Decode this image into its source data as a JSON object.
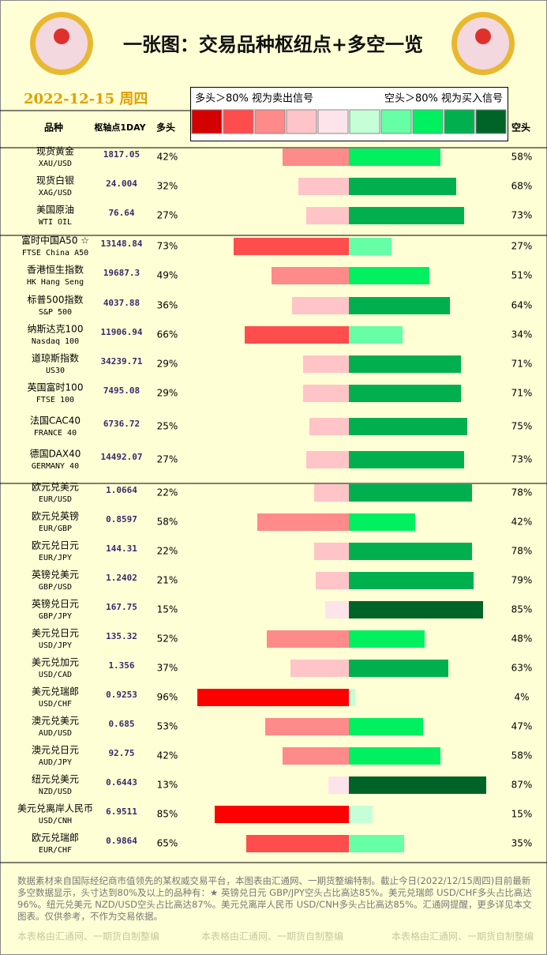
{
  "chart_data": {
    "type": "diverging-bar",
    "title": "一张图：交易品种枢纽点+多空一览",
    "date": "2022-12-15 周四",
    "legend_left": "多头＞80% 视为卖出信号",
    "legend_right": "空头＞80% 视为买入信号",
    "legend_colors": [
      "#d40000",
      "#ff4d4d",
      "#ff8a8a",
      "#ffc4c8",
      "#fde4ea",
      "#c4ffd8",
      "#66ffa6",
      "#00f060",
      "#00b04f",
      "#006428"
    ],
    "headers": {
      "name": "品种",
      "pivot": "枢轴点1DAY",
      "long": "多头",
      "short": "空头"
    },
    "categories": [
      "现货黄金",
      "现货白银",
      "美国原油",
      "富时中国A50 ☆",
      "香港恒生指数",
      "标普500指数",
      "纳斯达克100",
      "道琼斯指数",
      "英国富时100",
      "法国CAC40",
      "德国DAX40",
      "欧元兑美元",
      "欧元兑英镑",
      "欧元兑日元",
      "英镑兑美元",
      "英镑兑日元",
      "美元兑日元",
      "美元兑加元",
      "美元兑瑞郎",
      "澳元兑美元",
      "澳元兑日元",
      "纽元兑美元",
      "美元兑离岸人民币",
      "欧元兑瑞郎"
    ],
    "codes": [
      "XAU/USD",
      "XAG/USD",
      "WTI OIL",
      "FTSE China A50",
      "HK Hang Seng",
      "S&P 500",
      "Nasdaq 100",
      "US30",
      "FTSE 100",
      "FRANCE 40",
      "GERMANY 40",
      "EUR/USD",
      "EUR/GBP",
      "EUR/JPY",
      "GBP/USD",
      "GBP/JPY",
      "USD/JPY",
      "USD/CAD",
      "USD/CHF",
      "AUD/USD",
      "AUD/JPY",
      "NZD/USD",
      "USD/CNH",
      "EUR/CHF"
    ],
    "pivots": [
      1817.05,
      24.004,
      76.64,
      13148.84,
      19687.3,
      4037.88,
      11906.94,
      34239.71,
      7495.08,
      6736.72,
      14492.07,
      1.0664,
      0.8597,
      144.31,
      1.2402,
      167.75,
      135.32,
      1.356,
      0.9253,
      0.685,
      92.75,
      0.6443,
      6.9511,
      0.9864
    ],
    "series": [
      {
        "name": "多头",
        "values": [
          42,
          32,
          27,
          73,
          49,
          36,
          66,
          29,
          29,
          25,
          27,
          22,
          58,
          22,
          21,
          15,
          52,
          37,
          96,
          53,
          42,
          13,
          85,
          65
        ],
        "value_labels": [
          "42%",
          "32%",
          "27%",
          "73%",
          "49%",
          "36%",
          "66%",
          "29%",
          "29%",
          "25%",
          "27%",
          "22%",
          "58%",
          "22%",
          "21%",
          "15%",
          "52%",
          "37%",
          "96%",
          "53%",
          "42%",
          "13%",
          "85%",
          "65%"
        ],
        "colors": [
          "#ff8a8a",
          "#ffc4c8",
          "#ffc4c8",
          "#ff4d4d",
          "#ff8a8a",
          "#ffc4c8",
          "#ff4d4d",
          "#ffc4c8",
          "#ffc4c8",
          "#ffc4c8",
          "#ffc4c8",
          "#ffc4c8",
          "#ff8a8a",
          "#ffc4c8",
          "#ffc4c8",
          "#fde4ea",
          "#ff8a8a",
          "#ffc4c8",
          "#ff0000",
          "#ff8a8a",
          "#ff8a8a",
          "#fde4ea",
          "#ff0000",
          "#ff4d4d"
        ]
      },
      {
        "name": "空头",
        "values": [
          58,
          68,
          73,
          27,
          51,
          64,
          34,
          71,
          71,
          75,
          73,
          78,
          42,
          78,
          79,
          85,
          48,
          63,
          4,
          47,
          58,
          87,
          15,
          35
        ],
        "value_labels": [
          "58%",
          "68%",
          "73%",
          "27%",
          "51%",
          "64%",
          "34%",
          "71%",
          "71%",
          "75%",
          "73%",
          "78%",
          "42%",
          "78%",
          "79%",
          "85%",
          "48%",
          "63%",
          "4%",
          "47%",
          "58%",
          "87%",
          "15%",
          "35%"
        ],
        "colors": [
          "#00f060",
          "#00b04f",
          "#00b04f",
          "#66ffa6",
          "#00f060",
          "#00b04f",
          "#66ffa6",
          "#00b04f",
          "#00b04f",
          "#00b04f",
          "#00b04f",
          "#00b04f",
          "#00f060",
          "#00b04f",
          "#00b04f",
          "#006428",
          "#00f060",
          "#00b04f",
          "#c4ffd8",
          "#00f060",
          "#00f060",
          "#006428",
          "#c4ffd8",
          "#66ffa6"
        ]
      }
    ],
    "footer": "数据素材来自国际经纪商市值领先的某权威交易平台，本图表由汇通网、一期货整编特制。截止今日(2022/12/15周四)目前最新多空数据显示，头寸达到80%及以上的品种有：★ 英镑兑日元 GBP/JPY空头占比高达85%。美元兑瑞郎 USD/CHF多头占比高达96%。纽元兑美元 NZD/USD空头占比高达87%。美元兑离岸人民币 USD/CNH多头占比高达85%。汇通网提醒，更多详见本文图表。仅供参考，不作为交易依据。",
    "watermarks": [
      "本表格由汇通网、一期货自制整编",
      "本表格由汇通网、一期货自制整编",
      "本表格由汇通网、一期货自制整编"
    ]
  }
}
